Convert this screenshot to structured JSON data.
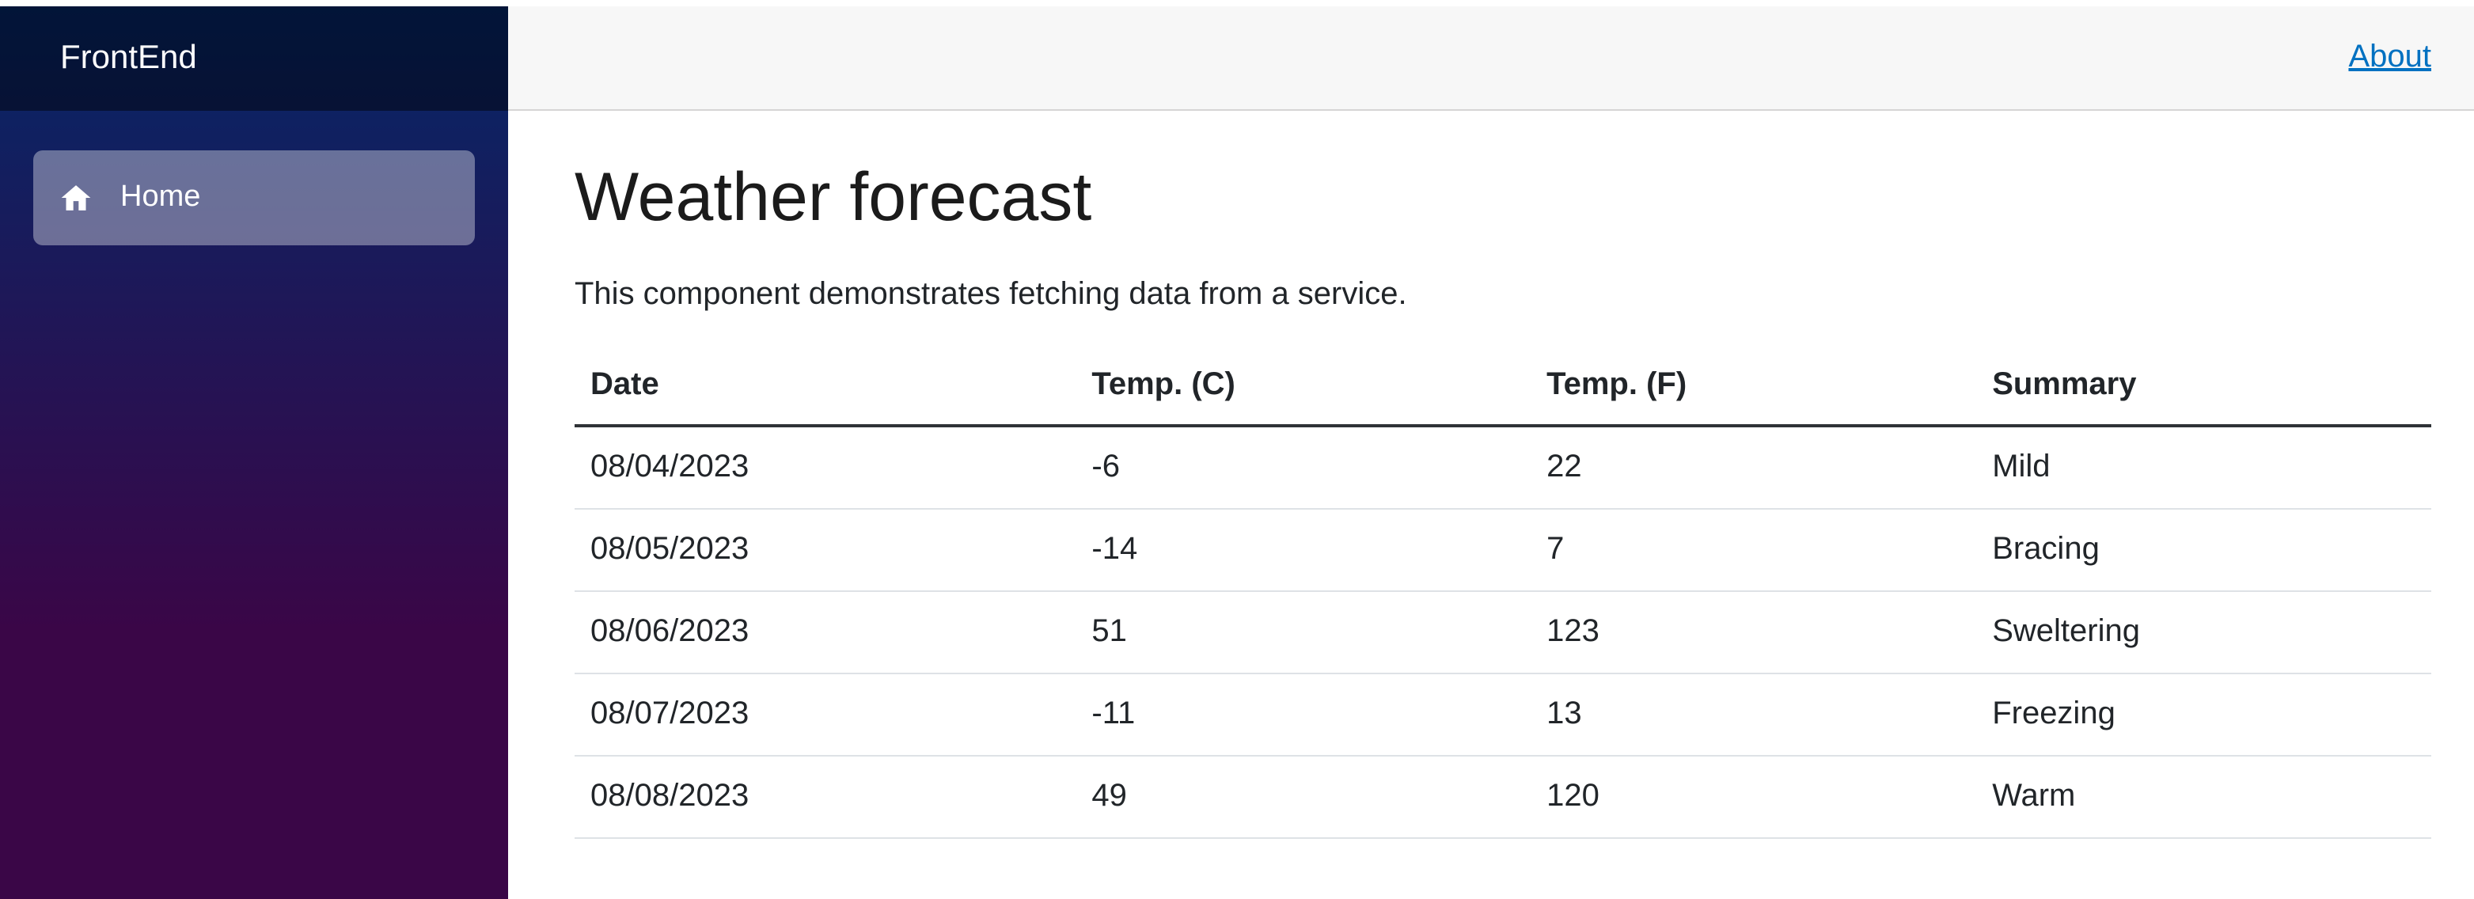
{
  "app": {
    "brand": "FrontEnd"
  },
  "sidebar": {
    "items": [
      {
        "label": "Home",
        "icon": "home-icon",
        "active": true
      }
    ]
  },
  "top_bar": {
    "about_label": "About"
  },
  "main": {
    "title": "Weather forecast",
    "description": "This component demonstrates fetching data from a service.",
    "table": {
      "headers": [
        "Date",
        "Temp. (C)",
        "Temp. (F)",
        "Summary"
      ],
      "rows": [
        [
          "08/04/2023",
          "-6",
          "22",
          "Mild"
        ],
        [
          "08/05/2023",
          "-14",
          "7",
          "Bracing"
        ],
        [
          "08/06/2023",
          "51",
          "123",
          "Sweltering"
        ],
        [
          "08/07/2023",
          "-11",
          "13",
          "Freezing"
        ],
        [
          "08/08/2023",
          "49",
          "120",
          "Warm"
        ]
      ]
    }
  },
  "colors": {
    "sidebar_gradient_top": "#052767",
    "sidebar_gradient_bottom": "#3a0647",
    "brand_bar_overlay": "rgba(0,0,0,0.45)",
    "active_nav_bg": "rgba(255,255,255,0.37)",
    "top_row_bg": "#f7f7f7",
    "top_row_border": "#d6d5d5",
    "link_blue": "#0071c1",
    "text_dark": "#1b1b1b",
    "table_row_border": "#dee2e6"
  }
}
